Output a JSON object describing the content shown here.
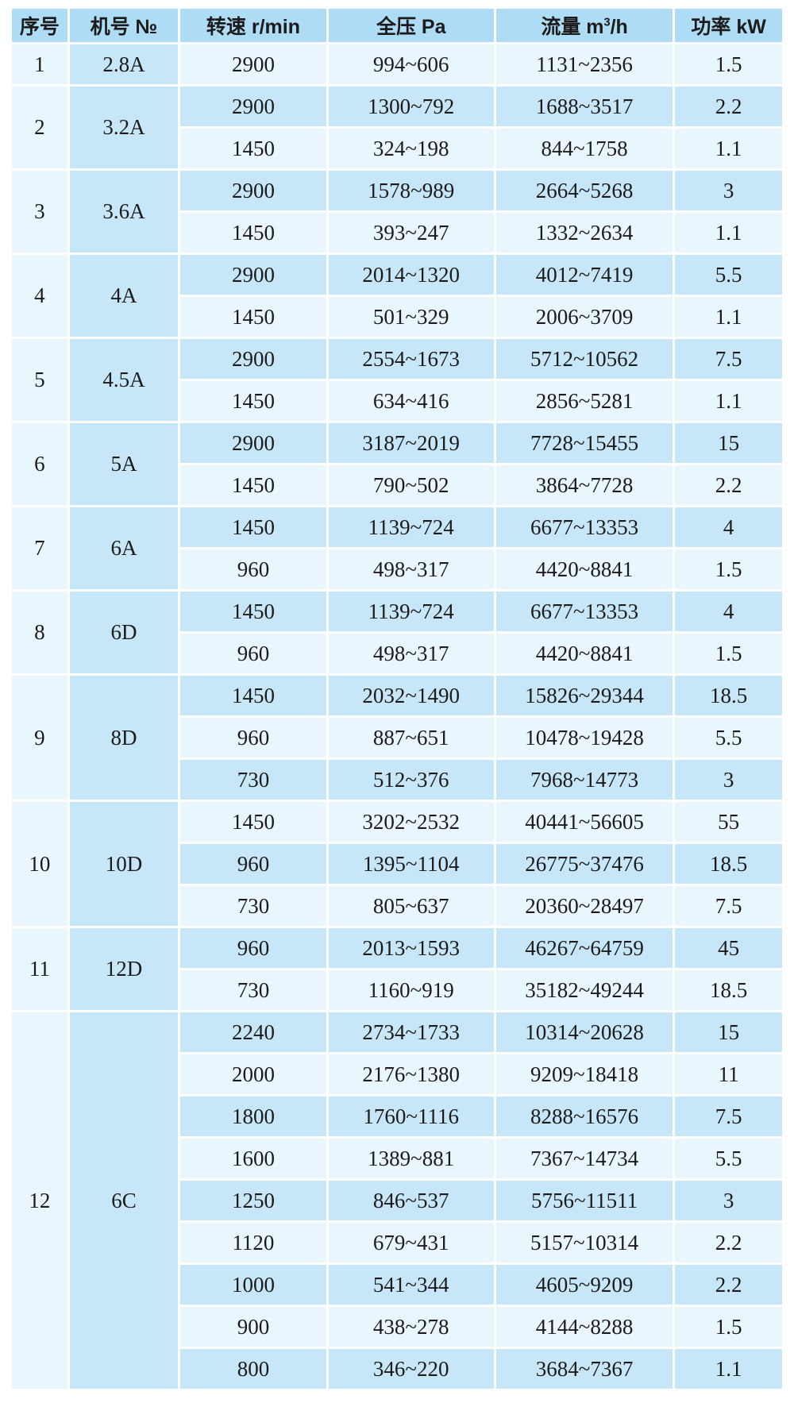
{
  "colors": {
    "header_bg": "#aedcf4",
    "row_medium": "#c7e7f9",
    "row_light": "#eaf6fd",
    "grid_line": "#ffffff",
    "text": "#1b1b1b"
  },
  "table": {
    "headers": [
      {
        "pre": "序号",
        "sup": "",
        "post": ""
      },
      {
        "pre": "机号 №",
        "sup": "",
        "post": ""
      },
      {
        "pre": "转速 r/min",
        "sup": "",
        "post": ""
      },
      {
        "pre": "全压 Pa",
        "sup": "",
        "post": ""
      },
      {
        "pre": "流量 m",
        "sup": "3",
        "post": "/h"
      },
      {
        "pre": "功率 kW",
        "sup": "",
        "post": ""
      }
    ],
    "groups": [
      {
        "no": "1",
        "model": "2.8A",
        "rows": [
          [
            "2900",
            "994~606",
            "1131~2356",
            "1.5"
          ]
        ]
      },
      {
        "no": "2",
        "model": "3.2A",
        "rows": [
          [
            "2900",
            "1300~792",
            "1688~3517",
            "2.2"
          ],
          [
            "1450",
            "324~198",
            "844~1758",
            "1.1"
          ]
        ]
      },
      {
        "no": "3",
        "model": "3.6A",
        "rows": [
          [
            "2900",
            "1578~989",
            "2664~5268",
            "3"
          ],
          [
            "1450",
            "393~247",
            "1332~2634",
            "1.1"
          ]
        ]
      },
      {
        "no": "4",
        "model": "4A",
        "rows": [
          [
            "2900",
            "2014~1320",
            "4012~7419",
            "5.5"
          ],
          [
            "1450",
            "501~329",
            "2006~3709",
            "1.1"
          ]
        ]
      },
      {
        "no": "5",
        "model": "4.5A",
        "rows": [
          [
            "2900",
            "2554~1673",
            "5712~10562",
            "7.5"
          ],
          [
            "1450",
            "634~416",
            "2856~5281",
            "1.1"
          ]
        ]
      },
      {
        "no": "6",
        "model": "5A",
        "rows": [
          [
            "2900",
            "3187~2019",
            "7728~15455",
            "15"
          ],
          [
            "1450",
            "790~502",
            "3864~7728",
            "2.2"
          ]
        ]
      },
      {
        "no": "7",
        "model": "6A",
        "rows": [
          [
            "1450",
            "1139~724",
            "6677~13353",
            "4"
          ],
          [
            "960",
            "498~317",
            "4420~8841",
            "1.5"
          ]
        ]
      },
      {
        "no": "8",
        "model": "6D",
        "rows": [
          [
            "1450",
            "1139~724",
            "6677~13353",
            "4"
          ],
          [
            "960",
            "498~317",
            "4420~8841",
            "1.5"
          ]
        ]
      },
      {
        "no": "9",
        "model": "8D",
        "rows": [
          [
            "1450",
            "2032~1490",
            "15826~29344",
            "18.5"
          ],
          [
            "960",
            "887~651",
            "10478~19428",
            "5.5"
          ],
          [
            "730",
            "512~376",
            "7968~14773",
            "3"
          ]
        ]
      },
      {
        "no": "10",
        "model": "10D",
        "rows": [
          [
            "1450",
            "3202~2532",
            "40441~56605",
            "55"
          ],
          [
            "960",
            "1395~1104",
            "26775~37476",
            "18.5"
          ],
          [
            "730",
            "805~637",
            "20360~28497",
            "7.5"
          ]
        ]
      },
      {
        "no": "11",
        "model": "12D",
        "rows": [
          [
            "960",
            "2013~1593",
            "46267~64759",
            "45"
          ],
          [
            "730",
            "1160~919",
            "35182~49244",
            "18.5"
          ]
        ]
      },
      {
        "no": "12",
        "model": "6C",
        "rows": [
          [
            "2240",
            "2734~1733",
            "10314~20628",
            "15"
          ],
          [
            "2000",
            "2176~1380",
            "9209~18418",
            "11"
          ],
          [
            "1800",
            "1760~1116",
            "8288~16576",
            "7.5"
          ],
          [
            "1600",
            "1389~881",
            "7367~14734",
            "5.5"
          ],
          [
            "1250",
            "846~537",
            "5756~11511",
            "3"
          ],
          [
            "1120",
            "679~431",
            "5157~10314",
            "2.2"
          ],
          [
            "1000",
            "541~344",
            "4605~9209",
            "2.2"
          ],
          [
            "900",
            "438~278",
            "4144~8288",
            "1.5"
          ],
          [
            "800",
            "346~220",
            "3684~7367",
            "1.1"
          ]
        ]
      }
    ]
  }
}
